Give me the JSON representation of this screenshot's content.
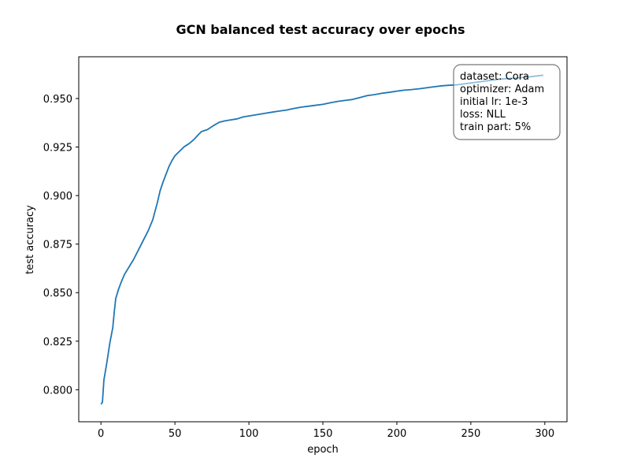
{
  "chart_data": {
    "type": "line",
    "title": "GCN balanced test accuracy over epochs",
    "xlabel": "epoch",
    "ylabel": "test accuracy",
    "xlim": [
      -15,
      315
    ],
    "ylim": [
      0.7835,
      0.9715
    ],
    "xticks": [
      0,
      50,
      100,
      150,
      200,
      250,
      300
    ],
    "yticks": [
      0.8,
      0.825,
      0.85,
      0.875,
      0.9,
      0.925,
      0.95
    ],
    "ytick_labels": [
      "0.800",
      "0.825",
      "0.850",
      "0.875",
      "0.900",
      "0.925",
      "0.950"
    ],
    "grid": false,
    "series": [
      {
        "color": "#1f77b4",
        "x": [
          0,
          1,
          2,
          4,
          6,
          8,
          9,
          10,
          12,
          14,
          16,
          18,
          20,
          22,
          25,
          28,
          30,
          32,
          35,
          38,
          40,
          42,
          44,
          46,
          48,
          50,
          52,
          54,
          56,
          58,
          60,
          63,
          66,
          68,
          70,
          72,
          76,
          80,
          84,
          88,
          92,
          96,
          100,
          104,
          108,
          112,
          116,
          120,
          125,
          130,
          135,
          140,
          145,
          150,
          155,
          160,
          165,
          170,
          175,
          180,
          185,
          190,
          195,
          200,
          205,
          210,
          215,
          220,
          225,
          230,
          235,
          240,
          245,
          250,
          260,
          270,
          280,
          290,
          299
        ],
        "y": [
          0.7925,
          0.7935,
          0.805,
          0.814,
          0.824,
          0.832,
          0.84,
          0.847,
          0.852,
          0.856,
          0.8595,
          0.862,
          0.8645,
          0.867,
          0.8715,
          0.876,
          0.879,
          0.882,
          0.8875,
          0.896,
          0.9025,
          0.907,
          0.911,
          0.915,
          0.918,
          0.9205,
          0.922,
          0.9235,
          0.925,
          0.926,
          0.927,
          0.929,
          0.9315,
          0.933,
          0.9335,
          0.934,
          0.936,
          0.9378,
          0.9385,
          0.939,
          0.9395,
          0.9405,
          0.941,
          0.9415,
          0.942,
          0.9425,
          0.943,
          0.9435,
          0.944,
          0.9448,
          0.9455,
          0.946,
          0.9465,
          0.947,
          0.9478,
          0.9485,
          0.949,
          0.9495,
          0.9505,
          0.9515,
          0.952,
          0.9527,
          0.9532,
          0.9538,
          0.9543,
          0.9546,
          0.955,
          0.9555,
          0.956,
          0.9565,
          0.9568,
          0.957,
          0.9575,
          0.958,
          0.959,
          0.96,
          0.9605,
          0.9612,
          0.962
        ]
      }
    ],
    "annotation": {
      "lines": [
        "dataset: Cora",
        "optimizer: Adam",
        "initial lr: 1e-3",
        "loss: NLL",
        "train part: 5%"
      ],
      "placement": "top-right"
    }
  }
}
